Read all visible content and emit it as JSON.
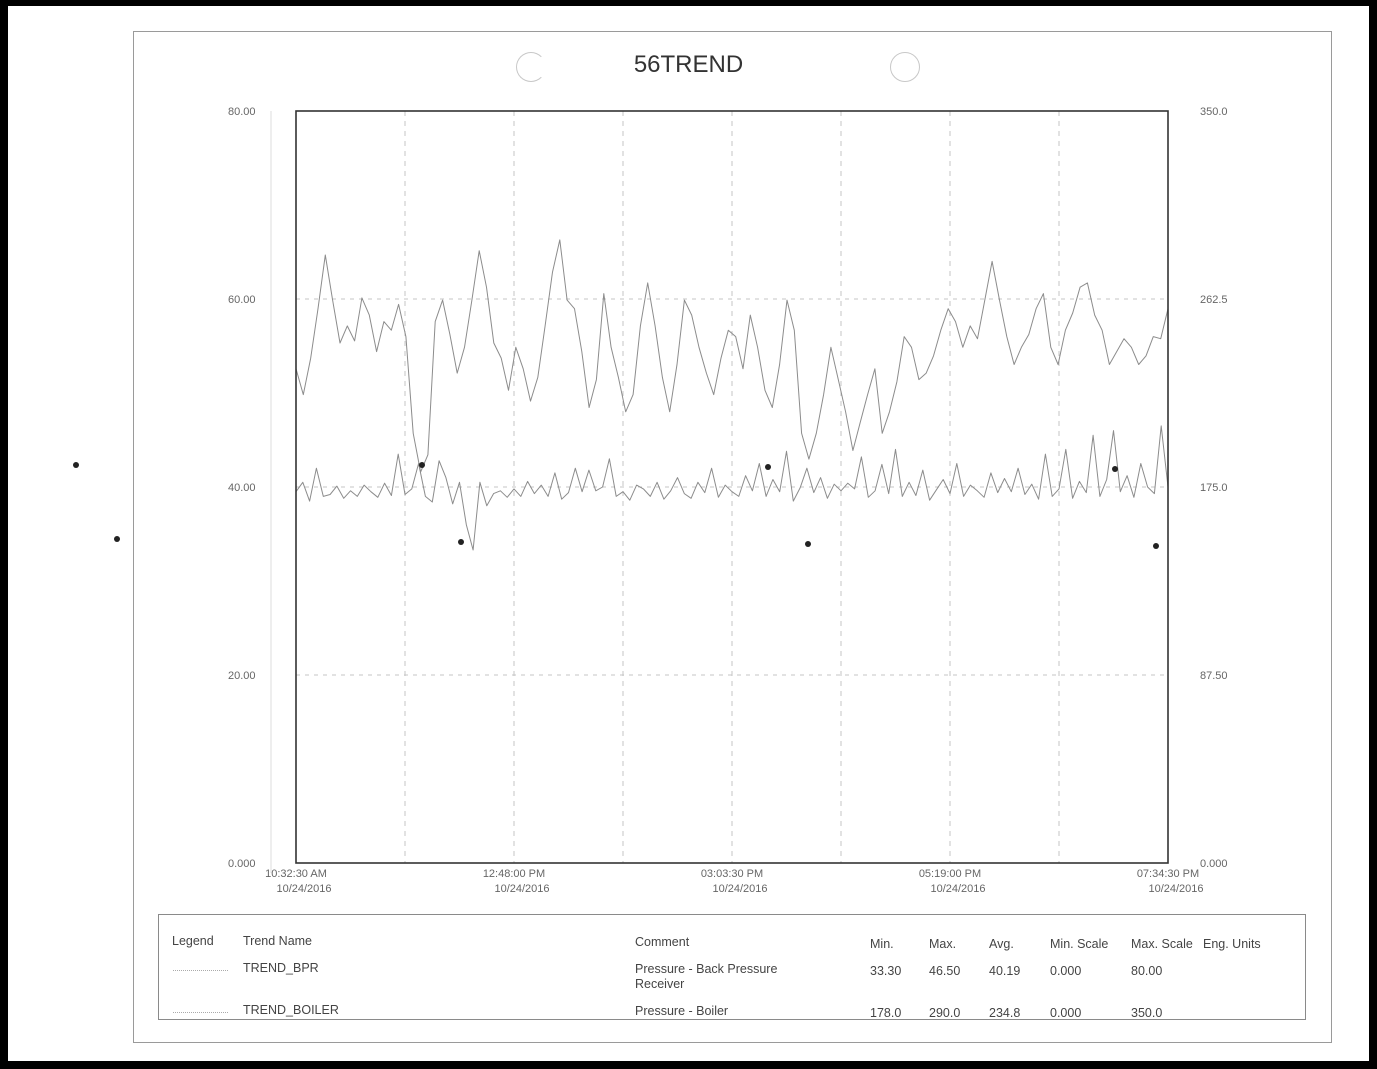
{
  "chart_data": {
    "type": "line",
    "title": "56TREND",
    "y_left": {
      "ylim": [
        0,
        80
      ],
      "ticks": [
        "80.00",
        "60.00",
        "40.00",
        "20.00",
        "0.000"
      ]
    },
    "y_right": {
      "ylim": [
        0,
        350
      ],
      "ticks": [
        "350.0",
        "262.5",
        "175.0",
        "87.50",
        "0.000"
      ]
    },
    "x_ticks": [
      {
        "time": "10:32:30 AM",
        "date": "10/24/2016"
      },
      {
        "time": "12:48:00 PM",
        "date": "10/24/2016"
      },
      {
        "time": "03:03:30 PM",
        "date": "10/24/2016"
      },
      {
        "time": "05:19:00 PM",
        "date": "10/24/2016"
      },
      {
        "time": "07:34:30 PM",
        "date": "10/24/2016"
      }
    ],
    "xlim": [
      "10:32:30 AM",
      "07:34:30 PM"
    ],
    "grid": true,
    "series": [
      {
        "name": "TREND_BPR",
        "axis": "left",
        "y": [
          39.5,
          40.5,
          38.5,
          42.0,
          39.0,
          39.2,
          40.1,
          38.8,
          39.6,
          39.0,
          40.2,
          39.5,
          38.9,
          40.4,
          39.1,
          43.5,
          39.2,
          39.8,
          42.5,
          39.0,
          38.4,
          42.8,
          41.0,
          38.2,
          40.5,
          36.0,
          33.3,
          40.5,
          38.0,
          39.3,
          39.6,
          38.9,
          39.8,
          39.0,
          40.6,
          39.3,
          40.2,
          39.0,
          41.5,
          38.7,
          39.4,
          42.0,
          39.5,
          41.8,
          39.6,
          40.0,
          43.0,
          39.0,
          39.5,
          38.6,
          40.2,
          39.8,
          39.0,
          40.5,
          38.7,
          39.6,
          41.0,
          39.3,
          38.8,
          40.5,
          39.4,
          42.0,
          38.9,
          40.2,
          39.5,
          39.0,
          41.2,
          39.6,
          42.5,
          39.0,
          40.8,
          39.5,
          43.8,
          38.5,
          39.9,
          42.0,
          39.4,
          41.0,
          38.8,
          40.3,
          39.6,
          40.4,
          39.8,
          43.2,
          38.9,
          39.6,
          42.4,
          39.3,
          44.0,
          39.0,
          40.5,
          39.1,
          41.8,
          38.6,
          39.7,
          40.8,
          39.3,
          42.5,
          39.0,
          40.2,
          39.6,
          38.9,
          41.5,
          39.4,
          40.9,
          39.5,
          42.0,
          39.2,
          40.3,
          38.7,
          43.5,
          39.0,
          39.8,
          44.0,
          38.8,
          40.6,
          39.4,
          45.5,
          39.0,
          40.8,
          46.0,
          39.5,
          41.2,
          38.9,
          42.5,
          40.0,
          39.3,
          46.5,
          40.0
        ]
      },
      {
        "name": "TREND_BOILER",
        "axis": "right",
        "y": [
          230,
          218,
          235,
          258,
          283,
          262,
          242,
          250,
          243,
          263,
          255,
          238,
          252,
          248,
          260,
          245,
          200,
          182,
          190,
          252,
          262,
          246,
          228,
          240,
          262,
          285,
          268,
          242,
          235,
          220,
          240,
          230,
          215,
          226,
          250,
          275,
          290,
          262,
          258,
          238,
          212,
          225,
          265,
          240,
          226,
          210,
          218,
          250,
          270,
          250,
          226,
          210,
          232,
          262,
          255,
          240,
          228,
          218,
          235,
          248,
          245,
          230,
          255,
          240,
          220,
          212,
          232,
          262,
          248,
          200,
          188,
          200,
          218,
          240,
          225,
          210,
          192,
          205,
          218,
          230,
          200,
          210,
          224,
          245,
          240,
          225,
          228,
          236,
          248,
          258,
          252,
          240,
          250,
          244,
          262,
          280,
          262,
          245,
          232,
          240,
          246,
          258,
          265,
          240,
          232,
          248,
          256,
          268,
          270,
          255,
          248,
          232,
          238,
          244,
          240,
          232,
          236,
          245,
          244,
          258
        ]
      }
    ]
  },
  "legend": {
    "headers": {
      "legend": "Legend",
      "trend_name": "Trend Name",
      "comment": "Comment",
      "min": "Min.",
      "max": "Max.",
      "avg": "Avg.",
      "min_scale": "Min. Scale",
      "max_scale": "Max. Scale",
      "eng_units": "Eng. Units"
    },
    "rows": [
      {
        "trend_name": "TREND_BPR",
        "comment": "Pressure - Back Pressure Receiver",
        "min": "33.30",
        "max": "46.50",
        "avg": "40.19",
        "min_scale": "0.000",
        "max_scale": "80.00",
        "eng_units": ""
      },
      {
        "trend_name": "TREND_BOILER",
        "comment": "Pressure - Boiler",
        "min": "178.0",
        "max": "290.0",
        "avg": "234.8",
        "min_scale": "0.000",
        "max_scale": "350.0",
        "eng_units": ""
      }
    ]
  },
  "colors": {
    "line": "#8c8c8c",
    "axis": "#333333",
    "grid": "#c4c4c4",
    "text": "#555555"
  }
}
